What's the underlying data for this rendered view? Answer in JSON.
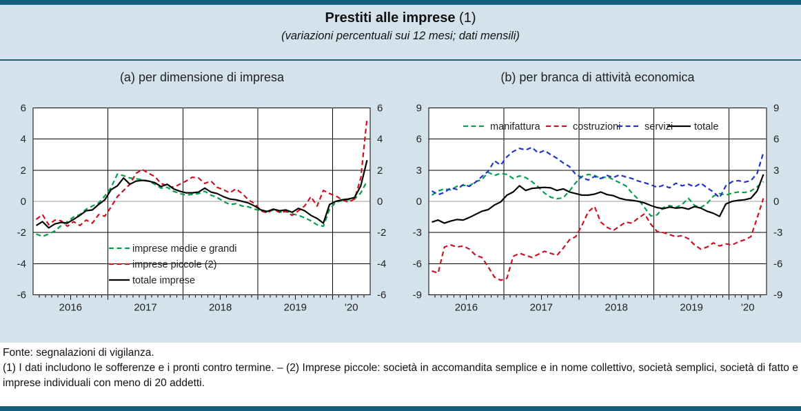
{
  "header": {
    "title": "Prestiti alle imprese",
    "title_note": "(1)",
    "subtitle": "(variazioni percentuali sui 12 mesi; dati mensili)"
  },
  "footer": {
    "source": "Fonte: segnalazioni di vigilanza.",
    "note": "(1) I dati includono le sofferenze e i pronti contro termine. – (2) Imprese piccole: società in accomandita semplice e in nome collettivo, società semplici, società di fatto e imprese individuali con meno di 20 addetti."
  },
  "colors": {
    "page_background": "#ffffff",
    "band_teal": "#15607e",
    "panel_background": "#d4e2ec",
    "plot_background": "#ffffff",
    "grid_line": "#000000",
    "zero_line": "#9c9c9c",
    "text": "#222222",
    "green": "#00a04f",
    "red": "#cc1122",
    "blue": "#2233cc",
    "black": "#000000"
  },
  "chart_data": [
    {
      "id": "a",
      "title": "(a) per dimensione di impresa",
      "type": "line",
      "frequency": "monthly",
      "x_start": "2016-01",
      "x_end": "2020-06",
      "x_year_labels": [
        "2016",
        "2017",
        "2018",
        "2019",
        "'20"
      ],
      "ylim": [
        -6,
        6
      ],
      "ytick_step": 2,
      "grid": true,
      "legend_position": "inside-bottom-left",
      "series": [
        {
          "name": "imprese medie e grandi",
          "color": "green",
          "dash": true,
          "values": [
            -2.1,
            -2.25,
            -2.1,
            -1.9,
            -1.55,
            -1.3,
            -1.0,
            -0.85,
            -0.5,
            -0.3,
            -0.1,
            0.35,
            0.9,
            1.75,
            1.65,
            1.5,
            1.45,
            1.4,
            1.3,
            1.1,
            0.85,
            0.9,
            0.65,
            0.5,
            0.4,
            0.45,
            0.5,
            0.65,
            0.4,
            0.25,
            0.0,
            -0.2,
            -0.15,
            -0.3,
            -0.35,
            -0.5,
            -0.6,
            -0.7,
            -0.55,
            -0.7,
            -0.6,
            -0.8,
            -0.9,
            -1.05,
            -1.25,
            -1.5,
            -1.6,
            -0.5,
            -0.05,
            0.05,
            0.1,
            0.15,
            0.55,
            1.3
          ]
        },
        {
          "name": "imprese piccole (2)",
          "color": "red",
          "dash": true,
          "values": [
            -1.15,
            -0.85,
            -1.5,
            -1.2,
            -1.25,
            -1.6,
            -1.3,
            -1.55,
            -1.2,
            -1.4,
            -0.85,
            -0.95,
            -0.35,
            0.3,
            0.7,
            1.1,
            1.8,
            2.05,
            1.8,
            1.6,
            1.15,
            1.0,
            0.9,
            1.1,
            1.3,
            1.55,
            1.5,
            1.15,
            1.3,
            0.9,
            0.75,
            0.55,
            0.8,
            0.5,
            0.1,
            -0.15,
            -0.6,
            -0.75,
            -0.5,
            -0.7,
            -0.65,
            -0.9,
            -0.6,
            -0.3,
            0.3,
            -0.3,
            0.7,
            0.5,
            0.35,
            0.1,
            -0.05,
            0.15,
            1.5,
            5.35
          ]
        },
        {
          "name": "totale imprese",
          "color": "black",
          "dash": false,
          "values": [
            -1.55,
            -1.3,
            -1.7,
            -1.45,
            -1.35,
            -1.4,
            -1.15,
            -0.9,
            -0.6,
            -0.55,
            -0.2,
            0.1,
            0.75,
            1.0,
            1.5,
            1.1,
            1.3,
            1.35,
            1.3,
            1.2,
            0.95,
            1.1,
            0.8,
            0.65,
            0.55,
            0.55,
            0.6,
            0.85,
            0.6,
            0.5,
            0.3,
            0.15,
            0.1,
            0.0,
            -0.1,
            -0.3,
            -0.55,
            -0.65,
            -0.5,
            -0.6,
            -0.55,
            -0.7,
            -0.45,
            -0.6,
            -0.9,
            -1.1,
            -1.4,
            -0.2,
            0.0,
            0.1,
            0.15,
            0.25,
            1.0,
            2.65
          ]
        }
      ]
    },
    {
      "id": "b",
      "title": "(b) per branca di attività economica",
      "type": "line",
      "frequency": "monthly",
      "x_start": "2016-01",
      "x_end": "2020-06",
      "x_year_labels": [
        "2016",
        "2017",
        "2018",
        "2019",
        "'20"
      ],
      "ylim": [
        -9,
        9
      ],
      "ytick_step": 3,
      "grid": true,
      "legend_position": "inside-top",
      "series": [
        {
          "name": "manifattura",
          "color": "green",
          "dash": true,
          "values": [
            0.6,
            1.0,
            1.2,
            1.1,
            1.45,
            1.55,
            1.5,
            1.9,
            2.1,
            2.8,
            2.5,
            2.7,
            2.6,
            2.2,
            2.45,
            2.3,
            1.9,
            1.4,
            0.8,
            0.4,
            0.25,
            0.35,
            1.0,
            1.8,
            2.4,
            2.6,
            2.5,
            2.2,
            2.4,
            2.1,
            1.8,
            1.5,
            0.8,
            0.2,
            -0.6,
            -1.4,
            -1.3,
            -0.6,
            -0.4,
            -0.6,
            -0.3,
            0.3,
            -0.4,
            -0.6,
            -0.2,
            0.5,
            0.75,
            0.6,
            0.8,
            0.9,
            0.85,
            1.0,
            1.4,
            1.9
          ]
        },
        {
          "name": "costruzioni",
          "color": "red",
          "dash": true,
          "values": [
            -6.7,
            -6.9,
            -4.4,
            -4.2,
            -4.4,
            -4.3,
            -4.6,
            -5.2,
            -5.4,
            -6.3,
            -7.3,
            -7.6,
            -7.4,
            -5.3,
            -5.0,
            -5.2,
            -5.4,
            -5.1,
            -4.8,
            -5.0,
            -5.2,
            -4.5,
            -3.7,
            -3.4,
            -2.3,
            -1.0,
            -0.5,
            -2.0,
            -2.5,
            -2.8,
            -2.4,
            -2.0,
            -2.1,
            -1.6,
            -1.2,
            -2.2,
            -2.9,
            -3.0,
            -3.2,
            -3.4,
            -3.3,
            -3.6,
            -4.2,
            -4.6,
            -4.4,
            -4.0,
            -4.3,
            -4.1,
            -4.2,
            -3.9,
            -3.7,
            -3.4,
            -1.6,
            0.3
          ]
        },
        {
          "name": "servizi",
          "color": "blue",
          "dash": true,
          "values": [
            1.0,
            0.65,
            0.85,
            1.3,
            1.15,
            1.6,
            1.45,
            1.85,
            2.4,
            2.9,
            3.9,
            3.5,
            4.3,
            4.8,
            5.1,
            4.95,
            5.2,
            4.65,
            4.9,
            4.5,
            4.15,
            3.7,
            3.35,
            2.6,
            2.3,
            2.05,
            2.4,
            2.2,
            2.5,
            2.3,
            2.55,
            2.35,
            2.2,
            1.95,
            1.8,
            1.6,
            1.35,
            1.55,
            1.3,
            1.75,
            1.5,
            1.65,
            1.4,
            1.75,
            1.3,
            0.9,
            0.35,
            1.5,
            1.9,
            2.0,
            1.85,
            2.0,
            2.7,
            4.7
          ]
        },
        {
          "name": "totale",
          "color": "black",
          "dash": false,
          "values": [
            -2.0,
            -1.8,
            -2.1,
            -1.9,
            -1.75,
            -1.8,
            -1.55,
            -1.25,
            -0.95,
            -0.8,
            -0.35,
            -0.05,
            0.6,
            0.9,
            1.5,
            1.05,
            1.25,
            1.3,
            1.35,
            1.3,
            1.05,
            1.2,
            0.9,
            0.75,
            0.6,
            0.6,
            0.7,
            0.9,
            0.65,
            0.55,
            0.3,
            0.15,
            0.1,
            0.0,
            -0.15,
            -0.4,
            -0.6,
            -0.7,
            -0.55,
            -0.65,
            -0.6,
            -0.75,
            -0.5,
            -0.65,
            -0.95,
            -1.15,
            -1.45,
            -0.25,
            0.0,
            0.1,
            0.15,
            0.3,
            1.0,
            2.6
          ]
        }
      ]
    }
  ]
}
